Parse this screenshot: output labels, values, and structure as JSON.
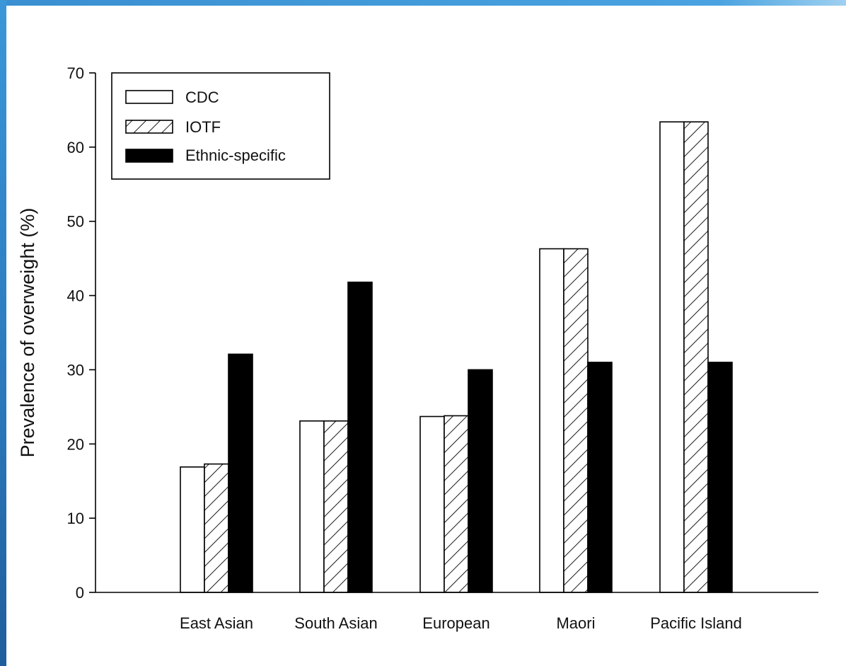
{
  "colors": {
    "frame": "#3a8fd0",
    "bar_stroke": "#000000",
    "cdc_fill": "#ffffff",
    "ethnic_fill": "#000000"
  },
  "chart_data": {
    "type": "bar",
    "title": "",
    "xlabel": "",
    "ylabel": "Prevalence of overweight (%)",
    "ylim": [
      0,
      70
    ],
    "yticks": [
      0,
      10,
      20,
      30,
      40,
      50,
      60,
      70
    ],
    "categories": [
      "East Asian",
      "South Asian",
      "European",
      "Maori",
      "Pacific Island"
    ],
    "series": [
      {
        "name": "CDC",
        "pattern": "open",
        "values": [
          16.9,
          23.1,
          23.7,
          46.3,
          63.4
        ]
      },
      {
        "name": "IOTF",
        "pattern": "hatched",
        "values": [
          17.3,
          23.1,
          23.8,
          46.3,
          63.4
        ]
      },
      {
        "name": "Ethnic-specific",
        "pattern": "solid-black",
        "values": [
          32.1,
          41.8,
          30.0,
          31.0,
          31.0
        ]
      }
    ],
    "grid": false,
    "legend_position": "top-left"
  }
}
